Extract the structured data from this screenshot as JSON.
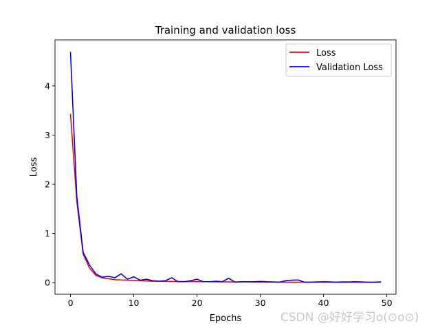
{
  "chart_data": {
    "type": "line",
    "title": "Training and validation loss",
    "xlabel": "Epochs",
    "ylabel": "Loss",
    "xlim": [
      -2.45,
      51.45
    ],
    "ylim": [
      -0.235,
      4.935
    ],
    "xticks": [
      0,
      10,
      20,
      30,
      40,
      50
    ],
    "yticks": [
      0,
      1,
      2,
      3,
      4
    ],
    "legend_position": "top-right",
    "x": [
      0,
      1,
      2,
      3,
      4,
      5,
      6,
      7,
      8,
      9,
      10,
      11,
      12,
      13,
      14,
      15,
      16,
      17,
      18,
      19,
      20,
      21,
      22,
      23,
      24,
      25,
      26,
      27,
      28,
      29,
      30,
      31,
      32,
      33,
      34,
      35,
      36,
      37,
      38,
      39,
      40,
      41,
      42,
      43,
      44,
      45,
      46,
      47,
      48,
      49
    ],
    "series": [
      {
        "name": "Loss",
        "color": "#ff0000",
        "values": [
          3.42,
          1.65,
          0.58,
          0.3,
          0.15,
          0.1,
          0.08,
          0.06,
          0.055,
          0.05,
          0.045,
          0.04,
          0.035,
          0.03,
          0.03,
          0.028,
          0.025,
          0.025,
          0.022,
          0.022,
          0.02,
          0.02,
          0.02,
          0.018,
          0.018,
          0.015,
          0.015,
          0.015,
          0.015,
          0.012,
          0.012,
          0.012,
          0.012,
          0.01,
          0.01,
          0.01,
          0.01,
          0.01,
          0.01,
          0.01,
          0.01,
          0.01,
          0.01,
          0.008,
          0.008,
          0.008,
          0.008,
          0.008,
          0.008,
          0.008
        ]
      },
      {
        "name": "Validation Loss",
        "color": "#0000ff",
        "values": [
          4.68,
          1.75,
          0.62,
          0.36,
          0.18,
          0.11,
          0.13,
          0.1,
          0.18,
          0.07,
          0.12,
          0.05,
          0.07,
          0.04,
          0.03,
          0.04,
          0.1,
          0.02,
          0.02,
          0.04,
          0.07,
          0.02,
          0.02,
          0.03,
          0.02,
          0.09,
          0.01,
          0.02,
          0.02,
          0.02,
          0.025,
          0.02,
          0.015,
          0.01,
          0.04,
          0.05,
          0.055,
          0.01,
          0.01,
          0.015,
          0.02,
          0.015,
          0.01,
          0.015,
          0.015,
          0.02,
          0.015,
          0.01,
          0.01,
          0.015
        ]
      }
    ]
  },
  "watermark": "CSDN @好好学习o(⊙o⊙)"
}
